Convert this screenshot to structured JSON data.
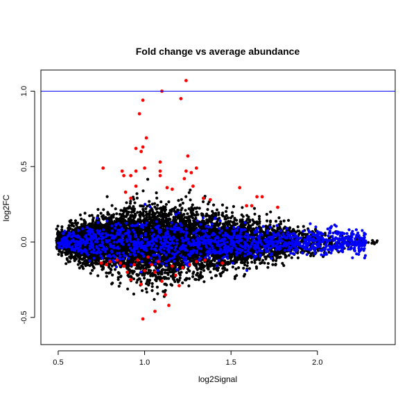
{
  "chart_data": {
    "type": "scatter",
    "title": "Fold change vs average abundance",
    "xlabel": "log2Signal",
    "ylabel": "log2FC",
    "xlim": [
      0.4,
      2.45
    ],
    "ylim": [
      -0.68,
      1.14
    ],
    "x_ticks": [
      0.5,
      1.0,
      1.5,
      2.0
    ],
    "x_tick_labels": [
      "0.5",
      "1.0",
      "1.5",
      "2.0"
    ],
    "y_ticks": [
      -0.5,
      0.0,
      0.5,
      1.0
    ],
    "y_tick_labels": [
      "-0.5",
      "0.0",
      "0.5",
      "1.0"
    ],
    "reference_line": {
      "y": 1.0,
      "color": "#0000ff"
    },
    "grid": false,
    "legend": "none",
    "colors": {
      "default": "#000000",
      "blue": "#0000ff",
      "red": "#ff0000"
    },
    "series": [
      {
        "color": "#ff0000",
        "points": [
          [
            1.24,
            1.07
          ],
          [
            1.1,
            1.0
          ],
          [
            1.21,
            0.95
          ],
          [
            0.99,
            0.94
          ],
          [
            0.97,
            0.85
          ],
          [
            1.01,
            0.69
          ],
          [
            0.95,
            0.62
          ],
          [
            0.99,
            0.63
          ],
          [
            0.98,
            0.6
          ],
          [
            1.25,
            0.57
          ],
          [
            1.3,
            0.49
          ],
          [
            1.09,
            0.53
          ],
          [
            1.24,
            0.47
          ],
          [
            1.09,
            0.44
          ],
          [
            0.92,
            0.44
          ],
          [
            1.23,
            0.42
          ],
          [
            0.76,
            0.49
          ],
          [
            0.87,
            0.47
          ],
          [
            1.0,
            0.49
          ],
          [
            0.95,
            0.47
          ],
          [
            0.88,
            0.44
          ],
          [
            1.09,
            0.47
          ],
          [
            1.27,
            0.46
          ],
          [
            1.34,
            0.29
          ],
          [
            1.38,
            0.28
          ],
          [
            1.55,
            0.36
          ],
          [
            1.65,
            0.3
          ],
          [
            1.68,
            0.3
          ],
          [
            1.59,
            0.24
          ],
          [
            1.77,
            0.23
          ],
          [
            1.62,
            0.24
          ],
          [
            1.28,
            0.37
          ],
          [
            1.13,
            0.36
          ],
          [
            1.16,
            0.35
          ],
          [
            0.95,
            0.37
          ],
          [
            0.89,
            0.33
          ],
          [
            0.92,
            0.29
          ],
          [
            0.75,
            -0.14
          ],
          [
            0.78,
            -0.15
          ],
          [
            0.8,
            -0.13
          ],
          [
            0.84,
            -0.12
          ],
          [
            0.86,
            -0.14
          ],
          [
            0.88,
            -0.16
          ],
          [
            0.9,
            -0.2
          ],
          [
            0.92,
            -0.25
          ],
          [
            0.94,
            -0.15
          ],
          [
            0.96,
            -0.12
          ],
          [
            0.98,
            -0.28
          ],
          [
            1.0,
            -0.19
          ],
          [
            1.02,
            -0.1
          ],
          [
            1.04,
            -0.15
          ],
          [
            1.06,
            -0.2
          ],
          [
            1.08,
            -0.13
          ],
          [
            1.1,
            -0.26
          ],
          [
            1.12,
            -0.35
          ],
          [
            1.14,
            -0.42
          ],
          [
            1.16,
            -0.16
          ],
          [
            1.18,
            -0.22
          ],
          [
            1.2,
            -0.29
          ],
          [
            1.22,
            -0.17
          ],
          [
            1.26,
            -0.15
          ],
          [
            1.3,
            -0.13
          ],
          [
            1.35,
            -0.12
          ],
          [
            1.45,
            -0.14
          ],
          [
            0.99,
            -0.51
          ],
          [
            1.06,
            -0.46
          ]
        ]
      }
    ]
  }
}
